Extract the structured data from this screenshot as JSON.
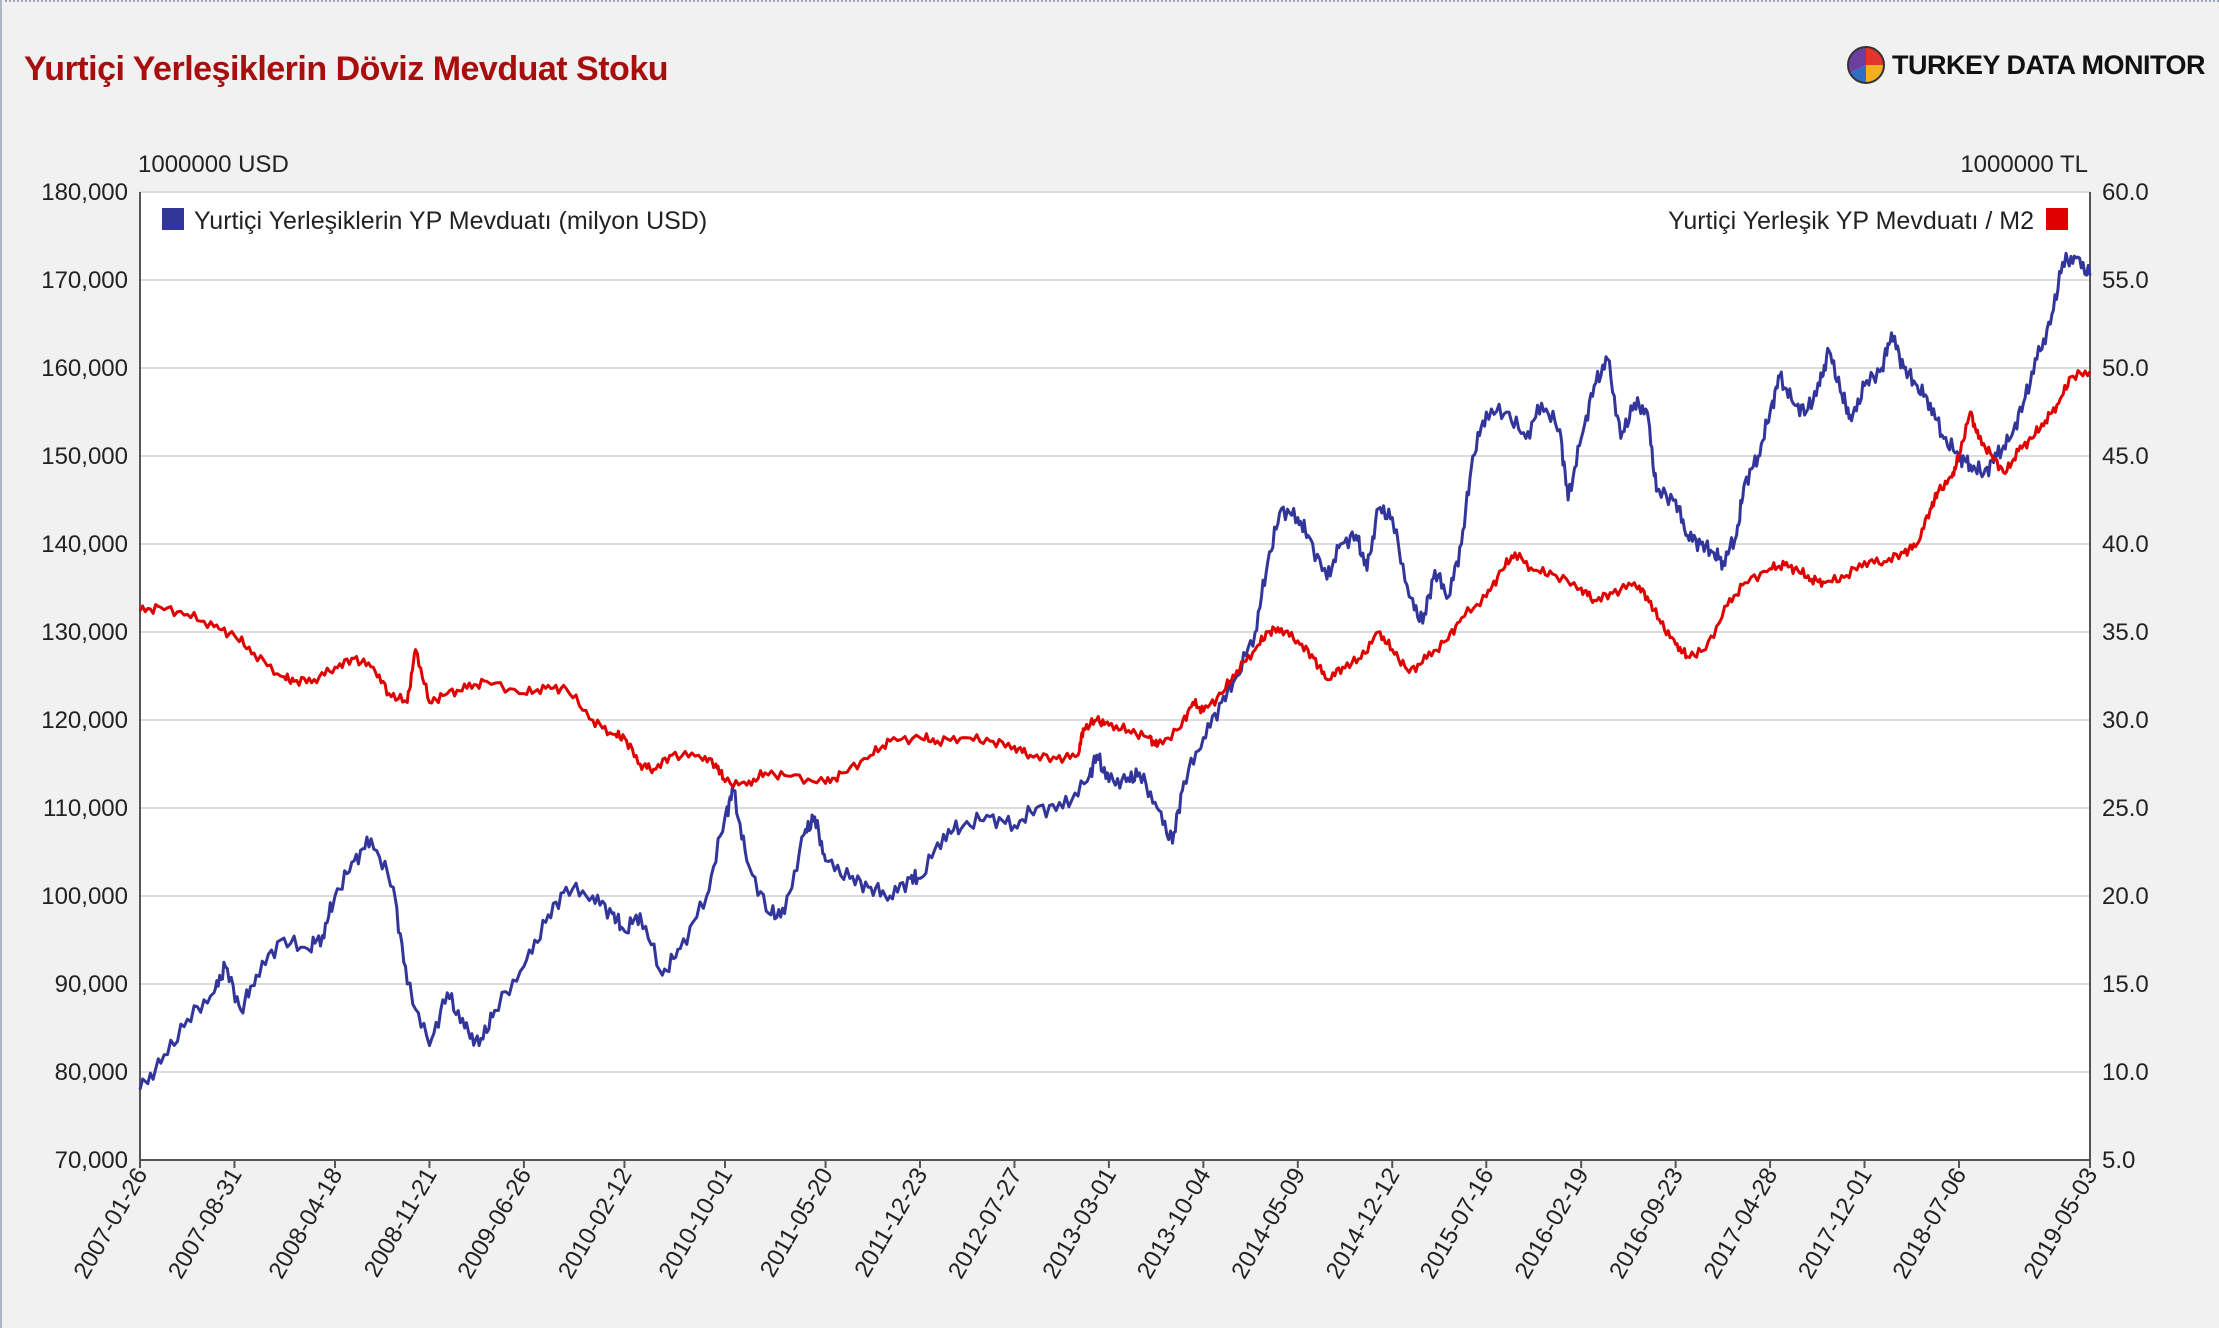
{
  "title": "Yurtiçi Yerleşiklerin Döviz Mevduat Stoku",
  "brand": {
    "name": "TURKEY DATA MONITOR",
    "icon": "pie-logo-icon"
  },
  "colors": {
    "title": "#a80e0e",
    "series_blue": "#32359a",
    "series_red": "#e00000",
    "grid": "#dcdcdc"
  },
  "chart_data": {
    "type": "line",
    "left_axis": {
      "unit": "1000000 USD",
      "min": 70000,
      "max": 180000,
      "step": 10000,
      "tick_labels": [
        "70,000",
        "80,000",
        "90,000",
        "100,000",
        "110,000",
        "120,000",
        "130,000",
        "140,000",
        "150,000",
        "160,000",
        "170,000",
        "180,000"
      ]
    },
    "right_axis": {
      "unit": "1000000 TL",
      "min": 5.0,
      "max": 60.0,
      "step": 5.0,
      "tick_labels": [
        "5.0",
        "10.0",
        "15.0",
        "20.0",
        "25.0",
        "30.0",
        "35.0",
        "40.0",
        "45.0",
        "50.0",
        "55.0",
        "60.0"
      ]
    },
    "x_axis": {
      "start": "2007-01-26",
      "end": "2019-05-03",
      "tick_labels": [
        "2007-01-26",
        "2007-08-31",
        "2008-04-18",
        "2008-11-21",
        "2009-06-26",
        "2010-02-12",
        "2010-10-01",
        "2011-05-20",
        "2011-12-23",
        "2012-07-27",
        "2013-03-01",
        "2013-10-04",
        "2014-05-09",
        "2014-12-12",
        "2015-07-16",
        "2016-02-19",
        "2016-09-23",
        "2017-04-28",
        "2017-12-01",
        "2018-07-06",
        "2019-05-03"
      ]
    },
    "grid": true,
    "legend_placement": "top",
    "series": [
      {
        "name": "Yurtiçi Yerleşiklerin YP Mevduatı (milyon USD)",
        "axis": "left",
        "color": "#32359a",
        "points": [
          [
            "2007-01-26",
            78000
          ],
          [
            "2007-03-15",
            81000
          ],
          [
            "2007-05-15",
            86000
          ],
          [
            "2007-07-15",
            89000
          ],
          [
            "2007-08-10",
            92000
          ],
          [
            "2007-09-15",
            87000
          ],
          [
            "2007-10-20",
            91000
          ],
          [
            "2007-12-15",
            95000
          ],
          [
            "2008-02-15",
            94000
          ],
          [
            "2008-03-20",
            95500
          ],
          [
            "2008-04-18",
            100000
          ],
          [
            "2008-06-01",
            104000
          ],
          [
            "2008-07-10",
            106500
          ],
          [
            "2008-08-30",
            101000
          ],
          [
            "2008-10-01",
            90000
          ],
          [
            "2008-11-21",
            83000
          ],
          [
            "2009-01-01",
            89000
          ],
          [
            "2009-02-10",
            85000
          ],
          [
            "2009-03-15",
            83000
          ],
          [
            "2009-04-20",
            87000
          ],
          [
            "2009-06-26",
            92000
          ],
          [
            "2009-08-15",
            97000
          ],
          [
            "2009-10-01",
            101000
          ],
          [
            "2009-12-01",
            100000
          ],
          [
            "2010-01-15",
            98000
          ],
          [
            "2010-02-12",
            96000
          ],
          [
            "2010-03-20",
            98000
          ],
          [
            "2010-05-10",
            91000
          ],
          [
            "2010-06-20",
            94000
          ],
          [
            "2010-08-20",
            100000
          ],
          [
            "2010-10-01",
            109000
          ],
          [
            "2010-10-20",
            112000
          ],
          [
            "2010-11-20",
            104000
          ],
          [
            "2011-01-10",
            98000
          ],
          [
            "2011-02-15",
            98000
          ],
          [
            "2011-04-01",
            107000
          ],
          [
            "2011-04-25",
            109000
          ],
          [
            "2011-05-20",
            104000
          ],
          [
            "2011-07-15",
            102000
          ],
          [
            "2011-09-01",
            101000
          ],
          [
            "2011-10-15",
            100000
          ],
          [
            "2011-12-01",
            102000
          ],
          [
            "2011-12-23",
            102000
          ],
          [
            "2012-02-15",
            107000
          ],
          [
            "2012-04-01",
            108000
          ],
          [
            "2012-06-01",
            109000
          ],
          [
            "2012-07-27",
            108000
          ],
          [
            "2012-09-15",
            110000
          ],
          [
            "2012-11-15",
            110000
          ],
          [
            "2013-01-10",
            113000
          ],
          [
            "2013-02-01",
            116000
          ],
          [
            "2013-03-01",
            113000
          ],
          [
            "2013-04-10",
            113000
          ],
          [
            "2013-05-10",
            114000
          ],
          [
            "2013-06-20",
            110000
          ],
          [
            "2013-07-25",
            106000
          ],
          [
            "2013-08-20",
            113000
          ],
          [
            "2013-10-04",
            118000
          ],
          [
            "2013-11-15",
            122000
          ],
          [
            "2013-12-20",
            125000
          ],
          [
            "2014-01-31",
            130000
          ],
          [
            "2014-03-01",
            138000
          ],
          [
            "2014-04-01",
            144000
          ],
          [
            "2014-05-09",
            143000
          ],
          [
            "2014-06-01",
            141000
          ],
          [
            "2014-07-15",
            136000
          ],
          [
            "2014-08-15",
            140000
          ],
          [
            "2014-09-20",
            141000
          ],
          [
            "2014-10-15",
            137000
          ],
          [
            "2014-11-10",
            144000
          ],
          [
            "2014-12-12",
            143000
          ],
          [
            "2015-01-20",
            134000
          ],
          [
            "2015-02-20",
            131000
          ],
          [
            "2015-03-20",
            137000
          ],
          [
            "2015-04-20",
            134000
          ],
          [
            "2015-05-20",
            140000
          ],
          [
            "2015-06-15",
            150000
          ],
          [
            "2015-07-16",
            155000
          ],
          [
            "2015-09-01",
            155000
          ],
          [
            "2015-10-15",
            152000
          ],
          [
            "2015-11-20",
            156000
          ],
          [
            "2016-01-01",
            153000
          ],
          [
            "2016-01-20",
            145000
          ],
          [
            "2016-02-19",
            152000
          ],
          [
            "2016-03-20",
            158000
          ],
          [
            "2016-04-20",
            161000
          ],
          [
            "2016-05-20",
            152000
          ],
          [
            "2016-06-20",
            156000
          ],
          [
            "2016-07-20",
            155000
          ],
          [
            "2016-08-10",
            146000
          ],
          [
            "2016-09-23",
            145000
          ],
          [
            "2016-10-20",
            141000
          ],
          [
            "2016-11-20",
            140000
          ],
          [
            "2016-12-20",
            139000
          ],
          [
            "2017-01-10",
            138000
          ],
          [
            "2017-02-10",
            141000
          ],
          [
            "2017-03-01",
            147000
          ],
          [
            "2017-04-01",
            150000
          ],
          [
            "2017-04-28",
            155000
          ],
          [
            "2017-05-20",
            159000
          ],
          [
            "2017-06-20",
            156000
          ],
          [
            "2017-07-20",
            155000
          ],
          [
            "2017-08-20",
            158000
          ],
          [
            "2017-09-10",
            162000
          ],
          [
            "2017-10-10",
            157000
          ],
          [
            "2017-11-01",
            154000
          ],
          [
            "2017-12-01",
            158000
          ],
          [
            "2018-01-10",
            160000
          ],
          [
            "2018-02-01",
            164000
          ],
          [
            "2018-03-01",
            160000
          ],
          [
            "2018-04-01",
            158000
          ],
          [
            "2018-05-01",
            156000
          ],
          [
            "2018-06-01",
            152000
          ],
          [
            "2018-07-06",
            150000
          ],
          [
            "2018-08-01",
            149000
          ],
          [
            "2018-09-01",
            148000
          ],
          [
            "2018-10-01",
            150000
          ],
          [
            "2018-11-01",
            152000
          ],
          [
            "2018-12-01",
            156000
          ],
          [
            "2019-01-01",
            161000
          ],
          [
            "2019-02-01",
            165000
          ],
          [
            "2019-03-01",
            172000
          ],
          [
            "2019-04-01",
            172500
          ],
          [
            "2019-05-03",
            170500
          ]
        ]
      },
      {
        "name": "Yurtiçi Yerleşik YP Mevduatı / M2",
        "axis": "right",
        "color": "#e00000",
        "points": [
          [
            "2007-01-26",
            36.2
          ],
          [
            "2007-03-15",
            36.4
          ],
          [
            "2007-05-15",
            36.0
          ],
          [
            "2007-07-15",
            35.3
          ],
          [
            "2007-08-31",
            34.8
          ],
          [
            "2007-10-15",
            33.8
          ],
          [
            "2007-12-15",
            32.5
          ],
          [
            "2008-01-15",
            32.2
          ],
          [
            "2008-03-01",
            32.3
          ],
          [
            "2008-04-18",
            33.0
          ],
          [
            "2008-06-01",
            33.5
          ],
          [
            "2008-07-15",
            33.0
          ],
          [
            "2008-08-20",
            31.5
          ],
          [
            "2008-10-01",
            31.0
          ],
          [
            "2008-10-20",
            34.0
          ],
          [
            "2008-11-21",
            31.0
          ],
          [
            "2009-01-01",
            31.5
          ],
          [
            "2009-02-15",
            31.8
          ],
          [
            "2009-04-01",
            32.2
          ],
          [
            "2009-06-26",
            31.5
          ],
          [
            "2009-08-15",
            31.8
          ],
          [
            "2009-10-01",
            31.8
          ],
          [
            "2009-12-01",
            30.0
          ],
          [
            "2010-01-15",
            29.2
          ],
          [
            "2010-02-12",
            29.0
          ],
          [
            "2010-03-20",
            27.5
          ],
          [
            "2010-04-20",
            27.2
          ],
          [
            "2010-06-01",
            28.0
          ],
          [
            "2010-08-01",
            28.0
          ],
          [
            "2010-09-10",
            27.5
          ],
          [
            "2010-10-01",
            26.5
          ],
          [
            "2010-11-20",
            26.3
          ],
          [
            "2011-01-01",
            27.0
          ],
          [
            "2011-03-01",
            26.8
          ],
          [
            "2011-05-20",
            26.4
          ],
          [
            "2011-07-01",
            27.0
          ],
          [
            "2011-09-01",
            28.0
          ],
          [
            "2011-10-15",
            28.8
          ],
          [
            "2011-12-23",
            29.0
          ],
          [
            "2012-02-01",
            28.8
          ],
          [
            "2012-04-01",
            29.0
          ],
          [
            "2012-06-01",
            28.8
          ],
          [
            "2012-07-27",
            28.5
          ],
          [
            "2012-09-01",
            28.0
          ],
          [
            "2012-11-01",
            27.8
          ],
          [
            "2012-12-20",
            28.0
          ],
          [
            "2013-01-01",
            29.5
          ],
          [
            "2013-02-01",
            30.0
          ],
          [
            "2013-03-01",
            29.7
          ],
          [
            "2013-04-15",
            29.4
          ],
          [
            "2013-06-01",
            29.0
          ],
          [
            "2013-06-20",
            28.5
          ],
          [
            "2013-08-10",
            29.5
          ],
          [
            "2013-09-10",
            31.0
          ],
          [
            "2013-10-04",
            30.5
          ],
          [
            "2013-11-15",
            31.5
          ],
          [
            "2013-12-20",
            32.8
          ],
          [
            "2014-01-31",
            34.0
          ],
          [
            "2014-03-01",
            35.0
          ],
          [
            "2014-04-01",
            35.2
          ],
          [
            "2014-05-09",
            34.5
          ],
          [
            "2014-06-15",
            33.5
          ],
          [
            "2014-07-15",
            32.3
          ],
          [
            "2014-08-20",
            33.0
          ],
          [
            "2014-10-01",
            33.5
          ],
          [
            "2014-11-10",
            35.0
          ],
          [
            "2014-12-12",
            34.0
          ],
          [
            "2015-01-20",
            32.7
          ],
          [
            "2015-03-01",
            33.5
          ],
          [
            "2015-04-15",
            34.5
          ],
          [
            "2015-05-20",
            35.8
          ],
          [
            "2015-07-16",
            37.0
          ],
          [
            "2015-08-20",
            38.5
          ],
          [
            "2015-09-20",
            39.5
          ],
          [
            "2015-11-01",
            38.5
          ],
          [
            "2015-12-15",
            38.3
          ],
          [
            "2016-02-19",
            37.5
          ],
          [
            "2016-03-20",
            36.8
          ],
          [
            "2016-05-01",
            37.2
          ],
          [
            "2016-06-20",
            37.8
          ],
          [
            "2016-07-20",
            37.0
          ],
          [
            "2016-08-20",
            35.5
          ],
          [
            "2016-09-23",
            34.3
          ],
          [
            "2016-10-20",
            33.6
          ],
          [
            "2016-12-01",
            34.0
          ],
          [
            "2017-01-20",
            36.5
          ],
          [
            "2017-03-01",
            37.8
          ],
          [
            "2017-04-28",
            38.6
          ],
          [
            "2017-06-01",
            38.8
          ],
          [
            "2017-07-01",
            38.5
          ],
          [
            "2017-08-01",
            38.0
          ],
          [
            "2017-09-01",
            37.8
          ],
          [
            "2017-10-15",
            38.1
          ],
          [
            "2017-12-01",
            39.0
          ],
          [
            "2018-01-15",
            39.0
          ],
          [
            "2018-03-01",
            39.5
          ],
          [
            "2018-04-01",
            40.0
          ],
          [
            "2018-05-01",
            42.0
          ],
          [
            "2018-05-20",
            43.0
          ],
          [
            "2018-06-20",
            43.8
          ],
          [
            "2018-07-06",
            45.0
          ],
          [
            "2018-08-01",
            47.5
          ],
          [
            "2018-08-20",
            46.0
          ],
          [
            "2018-09-20",
            45.0
          ],
          [
            "2018-10-20",
            44.0
          ],
          [
            "2018-11-20",
            45.3
          ],
          [
            "2018-12-20",
            46.0
          ],
          [
            "2019-01-20",
            47.0
          ],
          [
            "2019-02-20",
            48.0
          ],
          [
            "2019-03-20",
            49.5
          ],
          [
            "2019-05-03",
            49.8
          ]
        ]
      }
    ]
  }
}
